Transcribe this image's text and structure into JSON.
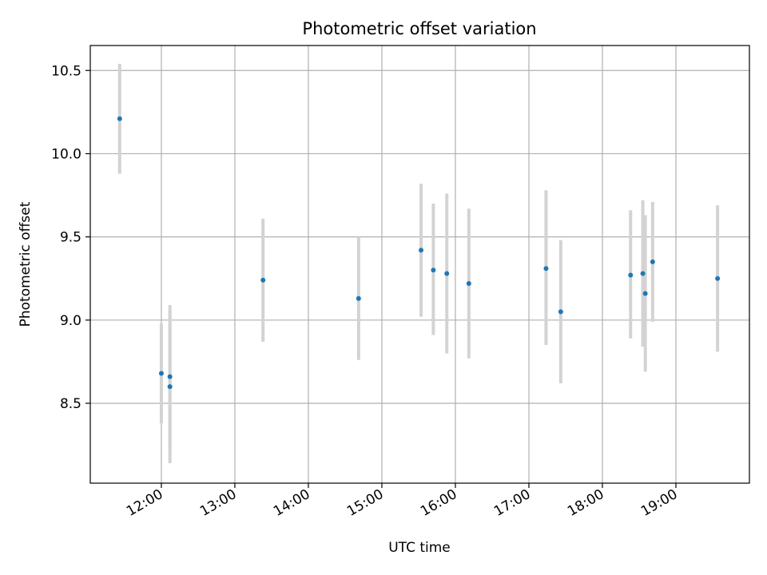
{
  "chart_data": {
    "type": "scatter",
    "title": "Photometric offset variation",
    "xlabel": "UTC time",
    "ylabel": "Photometric offset",
    "x_ticks": [
      "12:00",
      "13:00",
      "14:00",
      "15:00",
      "16:00",
      "17:00",
      "18:00",
      "19:00"
    ],
    "y_ticks": [
      "8.5",
      "9.0",
      "9.5",
      "10.0",
      "10.5"
    ],
    "x_range": [
      "11:02",
      "20:00"
    ],
    "ylim": [
      8.02,
      10.65
    ],
    "grid": true,
    "legend": "none",
    "marker_color": "#1f77b4",
    "errorbar_color": "#d3d3d3",
    "points": [
      {
        "time": "11:26",
        "offset": 10.21,
        "err_low": 9.88,
        "err_high": 10.54
      },
      {
        "time": "12:00",
        "offset": 8.68,
        "err_low": 8.38,
        "err_high": 8.98
      },
      {
        "time": "12:07",
        "offset": 8.66,
        "err_low": 8.23,
        "err_high": 9.09
      },
      {
        "time": "12:07",
        "offset": 8.6,
        "err_low": 8.14,
        "err_high": 9.06
      },
      {
        "time": "13:23",
        "offset": 9.24,
        "err_low": 8.87,
        "err_high": 9.61
      },
      {
        "time": "14:41",
        "offset": 9.13,
        "err_low": 8.76,
        "err_high": 9.5
      },
      {
        "time": "15:32",
        "offset": 9.42,
        "err_low": 9.02,
        "err_high": 9.82
      },
      {
        "time": "15:42",
        "offset": 9.3,
        "err_low": 8.91,
        "err_high": 9.7
      },
      {
        "time": "15:53",
        "offset": 9.28,
        "err_low": 8.8,
        "err_high": 9.76
      },
      {
        "time": "16:11",
        "offset": 9.22,
        "err_low": 8.77,
        "err_high": 9.67
      },
      {
        "time": "17:14",
        "offset": 9.31,
        "err_low": 8.85,
        "err_high": 9.78
      },
      {
        "time": "17:26",
        "offset": 9.05,
        "err_low": 8.62,
        "err_high": 9.48
      },
      {
        "time": "18:23",
        "offset": 9.27,
        "err_low": 8.89,
        "err_high": 9.66
      },
      {
        "time": "18:33",
        "offset": 9.28,
        "err_low": 8.84,
        "err_high": 9.72
      },
      {
        "time": "18:35",
        "offset": 9.16,
        "err_low": 8.69,
        "err_high": 9.63
      },
      {
        "time": "18:41",
        "offset": 9.35,
        "err_low": 8.99,
        "err_high": 9.71
      },
      {
        "time": "19:34",
        "offset": 9.25,
        "err_low": 8.81,
        "err_high": 9.69
      }
    ]
  }
}
